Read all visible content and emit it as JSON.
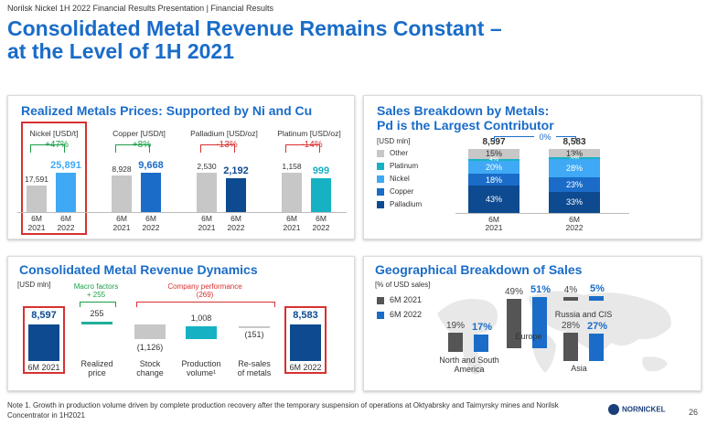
{
  "header": {
    "breadcrumb": "Norilsk Nickel 1H 2022 Financial Results Presentation | Financial Results"
  },
  "title": "Consolidated Metal Revenue Remains Constant –\nat the Level of 1H 2021",
  "colors": {
    "accent": "#1a6cc8",
    "dark_blue": "#0d4a8f",
    "teal": "#16b2c4",
    "light_blue": "#3fa9f5",
    "gray": "#c7c7c7",
    "red": "#d83030",
    "green": "#1c9d48"
  },
  "prices": {
    "title": "Realized Metals Prices: Supported by Ni and Cu",
    "metals": [
      {
        "name": "Nickel [USD/t]",
        "v2021": "17,591",
        "v2022": "25,891",
        "change": "+47%",
        "dir": "up",
        "color": "#3fa9f5",
        "boxed": true,
        "p1": "6M",
        "y1": "2021",
        "p2": "6M",
        "y2": "2022"
      },
      {
        "name": "Copper [USD/t]",
        "v2021": "8,928",
        "v2022": "9,668",
        "change": "+8%",
        "dir": "up",
        "color": "#1a6cc8",
        "boxed": false,
        "p1": "6M",
        "y1": "2021",
        "p2": "6M",
        "y2": "2022"
      },
      {
        "name": "Palladium [USD/oz]",
        "v2021": "2,530",
        "v2022": "2,192",
        "change": "-13%",
        "dir": "down",
        "color": "#0d4a8f",
        "boxed": false,
        "p1": "6M",
        "y1": "2021",
        "p2": "6M",
        "y2": "2022"
      },
      {
        "name": "Platinum [USD/oz]",
        "v2021": "1,158",
        "v2022": "999",
        "change": "-14%",
        "dir": "down",
        "color": "#16b2c4",
        "boxed": false,
        "p1": "6M",
        "y1": "2021",
        "p2": "6M",
        "y2": "2022"
      }
    ]
  },
  "sales": {
    "title": "Sales Breakdown by Metals:\nPd is the Largest Contributor",
    "unit": "[USD mln]",
    "legend": [
      {
        "label": "Other",
        "color": "#c7c7c7"
      },
      {
        "label": "Platinum",
        "color": "#16b2c4"
      },
      {
        "label": "Nickel",
        "color": "#3fa9f5"
      },
      {
        "label": "Copper",
        "color": "#1a6cc8"
      },
      {
        "label": "Palladium",
        "color": "#0d4a8f"
      }
    ],
    "change": "0%",
    "bars": [
      {
        "total": "8,597",
        "period": "6M",
        "year": "2021",
        "segs": [
          "15%",
          "4%",
          "20%",
          "18%",
          "43%"
        ],
        "shares": [
          15,
          4,
          20,
          18,
          43
        ]
      },
      {
        "total": "8,583",
        "period": "6M",
        "year": "2022",
        "segs": [
          "13%",
          "3%",
          "28%",
          "23%",
          "33%"
        ],
        "shares": [
          13,
          3,
          28,
          23,
          33
        ]
      }
    ]
  },
  "dynamics": {
    "title": "Consolidated Metal Revenue Dynamics",
    "unit": "[USD mln]",
    "macro_label": "Macro factors\n+ 255",
    "company_label": "Company performance\n(269)",
    "items": [
      {
        "label": "6M 2021",
        "value": "8,597"
      },
      {
        "label": "Realized\nprice",
        "value": "255"
      },
      {
        "label": "Stock\nchange",
        "value": "(1,126)"
      },
      {
        "label": "Production\nvolume¹",
        "value": "1,008"
      },
      {
        "label": "Re-sales\nof metals",
        "value": "(151)"
      },
      {
        "label": "6M 2022",
        "value": "8,583"
      }
    ]
  },
  "geo": {
    "title": "Geographical Breakdown of Sales",
    "unit": "[% of USD sales]",
    "legend": [
      {
        "label": "6M 2021",
        "color": "#555555"
      },
      {
        "label": "6M 2022",
        "color": "#1a6cc8"
      }
    ],
    "regions": [
      {
        "name": "North and South\nAmerica",
        "v2021": "19%",
        "v2022": "17%",
        "s2021": 19,
        "s2022": 17
      },
      {
        "name": "Europe",
        "v2021": "49%",
        "v2022": "51%",
        "s2021": 49,
        "s2022": 51
      },
      {
        "name": "Russia and CIS",
        "v2021": "4%",
        "v2022": "5%",
        "s2021": 4,
        "s2022": 5
      },
      {
        "name": "Asia",
        "v2021": "28%",
        "v2022": "27%",
        "s2021": 28,
        "s2022": 27
      }
    ]
  },
  "footnote": "Note 1. Growth in production volume driven by complete production recovery after the temporary suspension of operations at Oktyabrsky and Taimyrsky mines and Norilsk Concentrator in 1H2021",
  "logo": "NORNICKEL",
  "page_number": "26"
}
